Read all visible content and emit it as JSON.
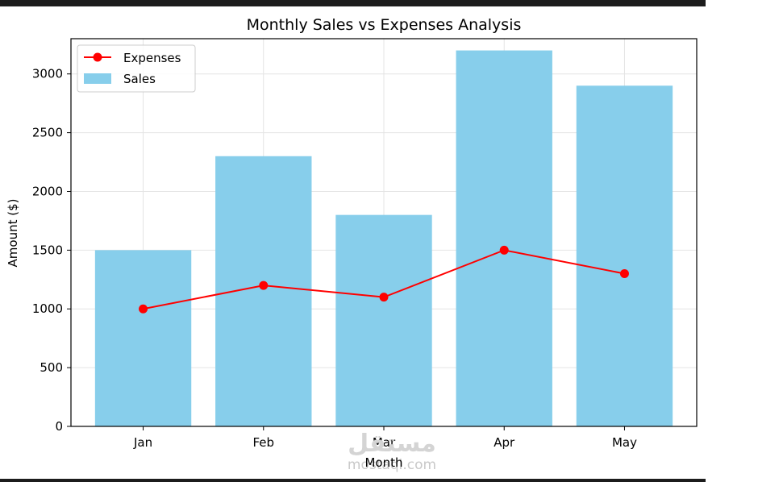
{
  "chart_data": {
    "type": "bar",
    "title": "Monthly Sales vs Expenses Analysis",
    "xlabel": "Month",
    "ylabel": "Amount ($)",
    "categories": [
      "Jan",
      "Feb",
      "Mar",
      "Apr",
      "May"
    ],
    "series": [
      {
        "name": "Sales",
        "kind": "bar",
        "values": [
          1500,
          2300,
          1800,
          3200,
          2900
        ],
        "color": "#87ceeb"
      },
      {
        "name": "Expenses",
        "kind": "line",
        "marker": "circle",
        "values": [
          1000,
          1200,
          1100,
          1500,
          1300
        ],
        "color": "#ff0000"
      }
    ],
    "ylim": [
      0,
      3300
    ],
    "yticks": [
      0,
      500,
      1000,
      1500,
      2000,
      2500,
      3000
    ],
    "grid": true,
    "legend": {
      "placement": "top-left",
      "entries": [
        "Expenses",
        "Sales"
      ]
    }
  },
  "watermark": {
    "text": "mostaql.com",
    "script_text": "مستقل"
  }
}
